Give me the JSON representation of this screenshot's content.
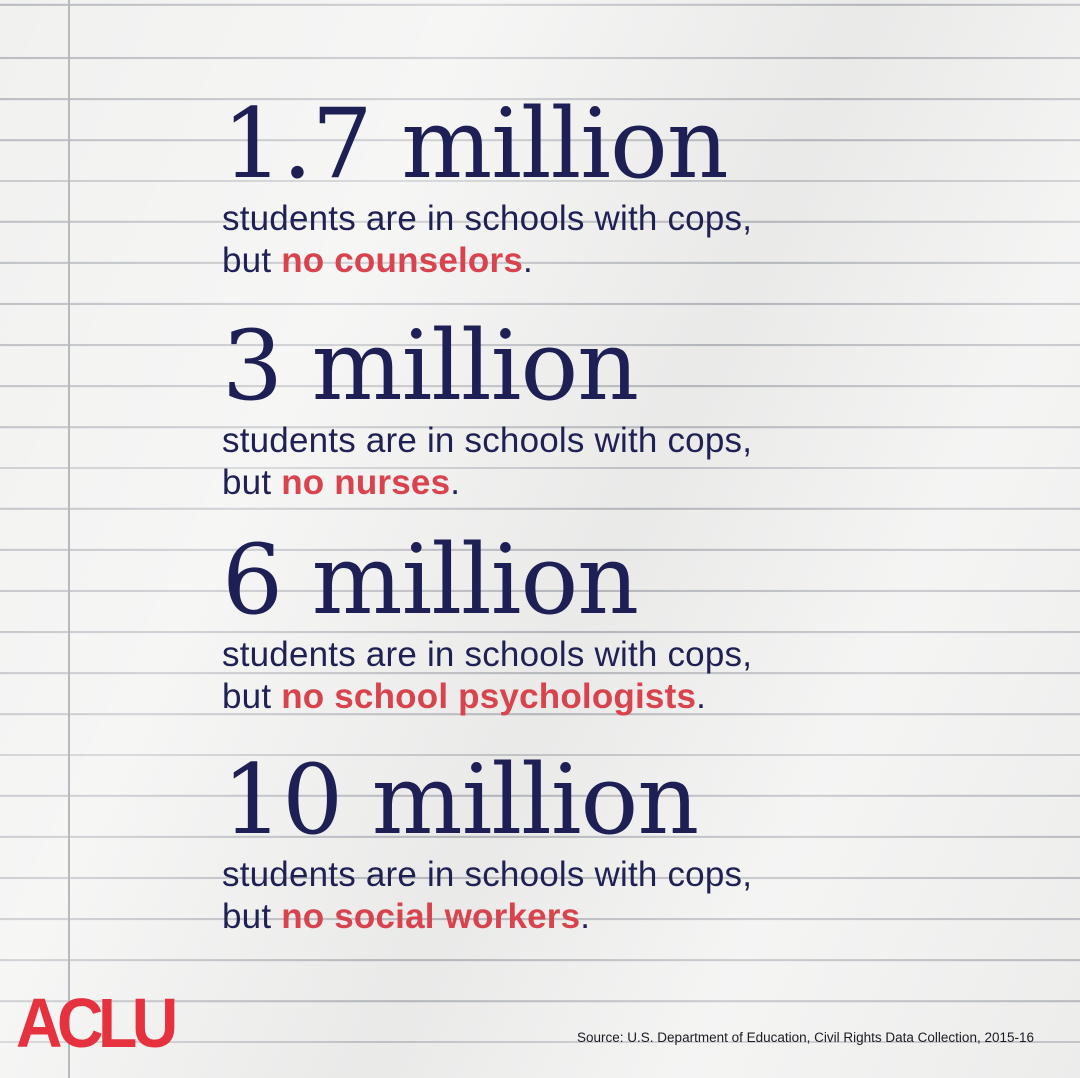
{
  "stats": [
    {
      "figure": "1.7 million",
      "line1": "students are in schools with cops,",
      "prefix": "but ",
      "highlight": "no counselors",
      "suffix": "."
    },
    {
      "figure": "3 million",
      "line1": "students are in schools with cops,",
      "prefix": "but ",
      "highlight": "no nurses",
      "suffix": "."
    },
    {
      "figure": "6 million",
      "line1": "students are in schools with cops,",
      "prefix": "but ",
      "highlight": "no school psychologists",
      "suffix": "."
    },
    {
      "figure": "10 million",
      "line1": "students are in schools with cops,",
      "prefix": "but ",
      "highlight": "no social workers",
      "suffix": "."
    }
  ],
  "logo": "ACLU",
  "source": "Source: U.S. Department of Education, Civil Rights Data Collection, 2015-16",
  "colors": {
    "navy": "#1d1f55",
    "red": "#d8434e",
    "logo_red": "#e6323f",
    "paper": "#f1f1f0",
    "rule": "#b9bcc0"
  }
}
